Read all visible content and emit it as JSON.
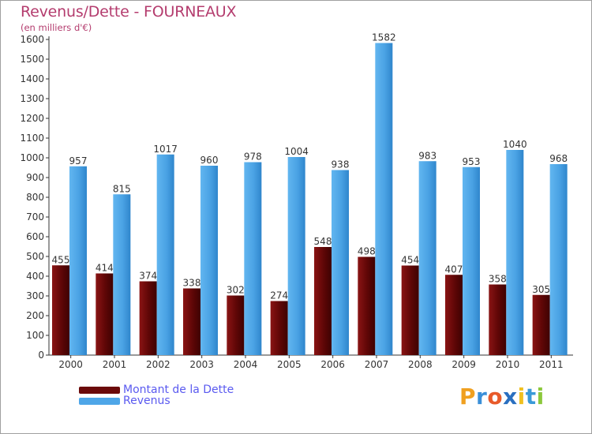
{
  "chart_data": {
    "type": "bar",
    "title": "Revenus/Dette - FOURNEAUX",
    "subtitle": "(en milliers d'€)",
    "categories": [
      "2000",
      "2001",
      "2002",
      "2003",
      "2004",
      "2005",
      "2006",
      "2007",
      "2008",
      "2009",
      "2010",
      "2011"
    ],
    "series": [
      {
        "name": "Montant de la Dette",
        "color": "#6b0a0a",
        "values": [
          455,
          414,
          374,
          338,
          302,
          274,
          548,
          498,
          454,
          407,
          358,
          305
        ]
      },
      {
        "name": "Revenus",
        "color": "#4ea6e8",
        "values": [
          957,
          815,
          1017,
          960,
          978,
          1004,
          938,
          1582,
          983,
          953,
          1040,
          968
        ]
      }
    ],
    "ylim": [
      0,
      1600
    ],
    "ytick_step": 100,
    "xlabel": "",
    "ylabel": "",
    "grid": false,
    "legend_position": "bottom-left"
  },
  "legend": {
    "debt_label": "Montant de la Dette",
    "revenue_label": "Revenus",
    "debt_color": "#6b0a0a",
    "revenue_color": "#4ea6e8"
  },
  "logo": {
    "letters": [
      "P",
      "r",
      "o",
      "x",
      "i",
      "t",
      "i"
    ],
    "colors": [
      "#f0a020",
      "#3a8fd8",
      "#e85a2a",
      "#2a6fc0",
      "#f0c020",
      "#3a9ad8",
      "#8cc83c"
    ]
  }
}
